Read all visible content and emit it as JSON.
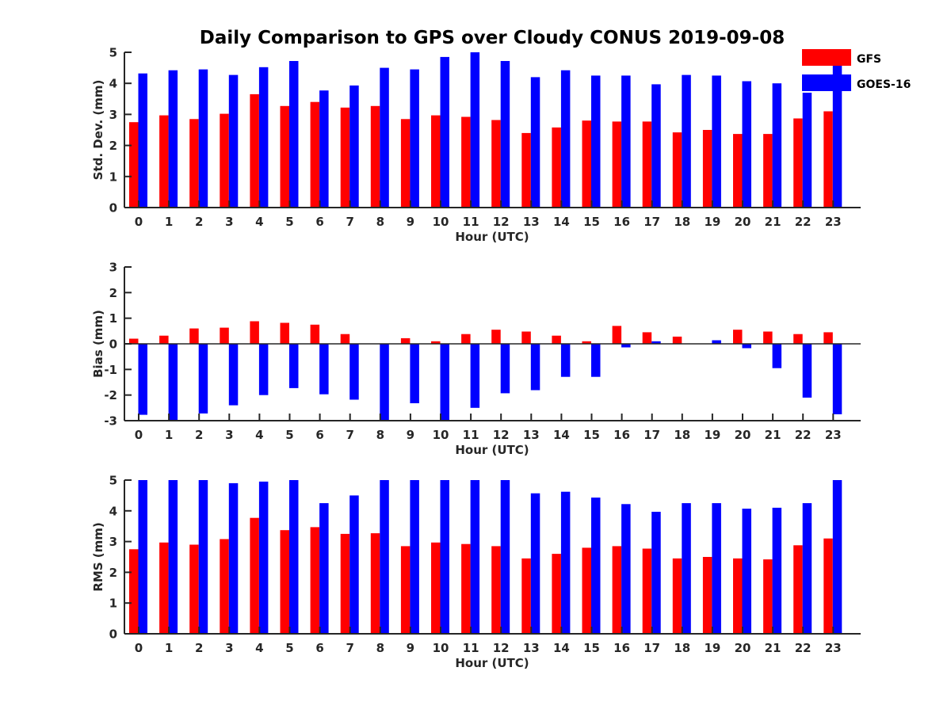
{
  "chart_data": {
    "type": "bar",
    "title": "Daily Comparison to GPS over Cloudy CONUS 2019-09-08",
    "categories": [
      "0",
      "1",
      "2",
      "3",
      "4",
      "5",
      "6",
      "7",
      "8",
      "9",
      "10",
      "11",
      "12",
      "13",
      "14",
      "15",
      "16",
      "17",
      "18",
      "19",
      "20",
      "21",
      "22",
      "23"
    ],
    "legend": {
      "placement": "top-right",
      "entries": [
        {
          "name": "GFS",
          "color": "#ff0000"
        },
        {
          "name": "GOES-16",
          "color": "#0000ff"
        }
      ]
    },
    "panels": [
      {
        "id": "stddev",
        "ylabel": "Std. Dev. (mm)",
        "xlabel": "Hour (UTC)",
        "ylim": [
          0,
          5
        ],
        "yticks": [
          0,
          1,
          2,
          3,
          4,
          5
        ],
        "series": [
          {
            "name": "GFS",
            "values": [
              2.75,
              2.97,
              2.85,
              3.02,
              3.65,
              3.27,
              3.4,
              3.22,
              3.27,
              2.85,
              2.97,
              2.92,
              2.82,
              2.4,
              2.58,
              2.8,
              2.77,
              2.77,
              2.42,
              2.5,
              2.37,
              2.37,
              2.87,
              3.1
            ]
          },
          {
            "name": "GOES-16",
            "values": [
              4.32,
              4.42,
              4.45,
              4.27,
              4.52,
              4.72,
              3.77,
              3.93,
              4.5,
              4.45,
              4.85,
              5.0,
              4.72,
              4.2,
              4.42,
              4.25,
              4.25,
              3.97,
              4.27,
              4.25,
              4.07,
              4.0,
              3.7,
              5.0
            ]
          }
        ]
      },
      {
        "id": "bias",
        "ylabel": "Bias (mm)",
        "xlabel": "Hour (UTC)",
        "ylim": [
          -3,
          3
        ],
        "yticks": [
          -3,
          -2,
          -1,
          0,
          1,
          2,
          3
        ],
        "series": [
          {
            "name": "GFS",
            "values": [
              0.2,
              0.32,
              0.6,
              0.63,
              0.88,
              0.82,
              0.75,
              0.38,
              0.0,
              0.22,
              0.1,
              0.38,
              0.55,
              0.48,
              0.32,
              0.1,
              0.7,
              0.45,
              0.28,
              0.0,
              0.55,
              0.48,
              0.38,
              0.45
            ]
          },
          {
            "name": "GOES-16",
            "values": [
              -2.77,
              -2.97,
              -2.72,
              -2.4,
              -2.0,
              -1.73,
              -1.97,
              -2.18,
              -3.0,
              -2.32,
              -3.0,
              -2.5,
              -1.93,
              -1.81,
              -1.29,
              -1.29,
              -0.14,
              0.1,
              0.0,
              0.14,
              -0.17,
              -0.95,
              -2.1,
              -2.75
            ]
          }
        ]
      },
      {
        "id": "rms",
        "ylabel": "RMS (mm)",
        "xlabel": "Hour (UTC)",
        "ylim": [
          0,
          5
        ],
        "yticks": [
          0,
          1,
          2,
          3,
          4,
          5
        ],
        "series": [
          {
            "name": "GFS",
            "values": [
              2.75,
              2.97,
              2.9,
              3.08,
              3.77,
              3.37,
              3.47,
              3.25,
              3.27,
              2.85,
              2.97,
              2.92,
              2.85,
              2.45,
              2.6,
              2.8,
              2.85,
              2.77,
              2.45,
              2.5,
              2.45,
              2.42,
              2.88,
              3.1
            ]
          },
          {
            "name": "GOES-16",
            "values": [
              5.0,
              5.0,
              5.0,
              4.9,
              4.95,
              5.0,
              4.25,
              4.5,
              5.0,
              5.0,
              5.0,
              5.0,
              5.0,
              4.57,
              4.62,
              4.43,
              4.22,
              3.97,
              4.25,
              4.25,
              4.07,
              4.1,
              4.25,
              5.0
            ]
          }
        ]
      }
    ]
  }
}
